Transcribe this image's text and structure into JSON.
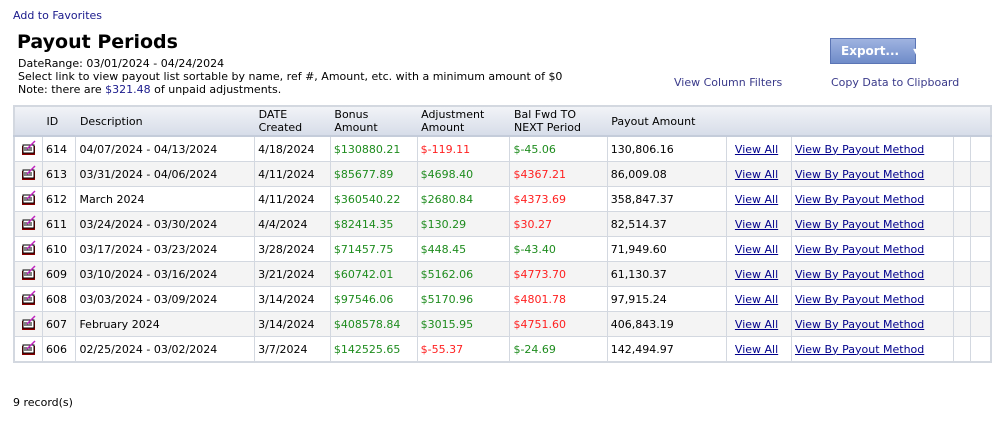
{
  "links": {
    "favorites": "Add to Favorites",
    "filters": "View Column Filters",
    "copy": "Copy Data to Clipboard"
  },
  "title": "Payout Periods",
  "info": {
    "date_range": "DateRange: 03/01/2024 - 04/24/2024",
    "instructions": "Select link to view payout list sortable by name, ref #, Amount, etc. with a minimum amount of $0",
    "note_prefix": "Note: there are ",
    "note_amount": "$321.48",
    "note_suffix": " of unpaid adjustments."
  },
  "export_button": "Export...",
  "colors": {
    "positive": "#1e8c1e",
    "negative": "#ff2020",
    "link": "#1a1a8c"
  },
  "columns": [
    "",
    "ID",
    "Description",
    "DATE Created",
    "Bonus Amount",
    "Adjustment Amount",
    "Bal Fwd TO NEXT Period",
    "Payout Amount",
    "",
    "",
    "",
    ""
  ],
  "rows": [
    {
      "id": "614",
      "desc": "04/07/2024 - 04/13/2024",
      "date": "4/18/2024",
      "bonus": "$130880.21",
      "adj": "$-119.11",
      "adj_c": "negative",
      "bal": "$-45.06",
      "bal_c": "positive",
      "payout": "130,806.16"
    },
    {
      "id": "613",
      "desc": "03/31/2024 - 04/06/2024",
      "date": "4/11/2024",
      "bonus": "$85677.89",
      "adj": "$4698.40",
      "adj_c": "positive",
      "bal": "$4367.21",
      "bal_c": "negative",
      "payout": "86,009.08"
    },
    {
      "id": "612",
      "desc": "March 2024",
      "date": "4/11/2024",
      "bonus": "$360540.22",
      "adj": "$2680.84",
      "adj_c": "positive",
      "bal": "$4373.69",
      "bal_c": "negative",
      "payout": "358,847.37"
    },
    {
      "id": "611",
      "desc": "03/24/2024 - 03/30/2024",
      "date": "4/4/2024",
      "bonus": "$82414.35",
      "adj": "$130.29",
      "adj_c": "positive",
      "bal": "$30.27",
      "bal_c": "negative",
      "payout": "82,514.37"
    },
    {
      "id": "610",
      "desc": "03/17/2024 - 03/23/2024",
      "date": "3/28/2024",
      "bonus": "$71457.75",
      "adj": "$448.45",
      "adj_c": "positive",
      "bal": "$-43.40",
      "bal_c": "positive",
      "payout": "71,949.60"
    },
    {
      "id": "609",
      "desc": "03/10/2024 - 03/16/2024",
      "date": "3/21/2024",
      "bonus": "$60742.01",
      "adj": "$5162.06",
      "adj_c": "positive",
      "bal": "$4773.70",
      "bal_c": "negative",
      "payout": "61,130.37"
    },
    {
      "id": "608",
      "desc": "03/03/2024 - 03/09/2024",
      "date": "3/14/2024",
      "bonus": "$97546.06",
      "adj": "$5170.96",
      "adj_c": "positive",
      "bal": "$4801.78",
      "bal_c": "negative",
      "payout": "97,915.24"
    },
    {
      "id": "607",
      "desc": "February 2024",
      "date": "3/14/2024",
      "bonus": "$408578.84",
      "adj": "$3015.95",
      "adj_c": "positive",
      "bal": "$4751.60",
      "bal_c": "negative",
      "payout": "406,843.19"
    },
    {
      "id": "606",
      "desc": "02/25/2024 - 03/02/2024",
      "date": "3/7/2024",
      "bonus": "$142525.65",
      "adj": "$-55.37",
      "adj_c": "negative",
      "bal": "$-24.69",
      "bal_c": "positive",
      "payout": "142,494.97"
    }
  ],
  "row_links": {
    "view_all": "View All",
    "view_by": "View By Payout Method"
  },
  "row_icon": "edit-notepad-icon",
  "records": "9 record(s)"
}
